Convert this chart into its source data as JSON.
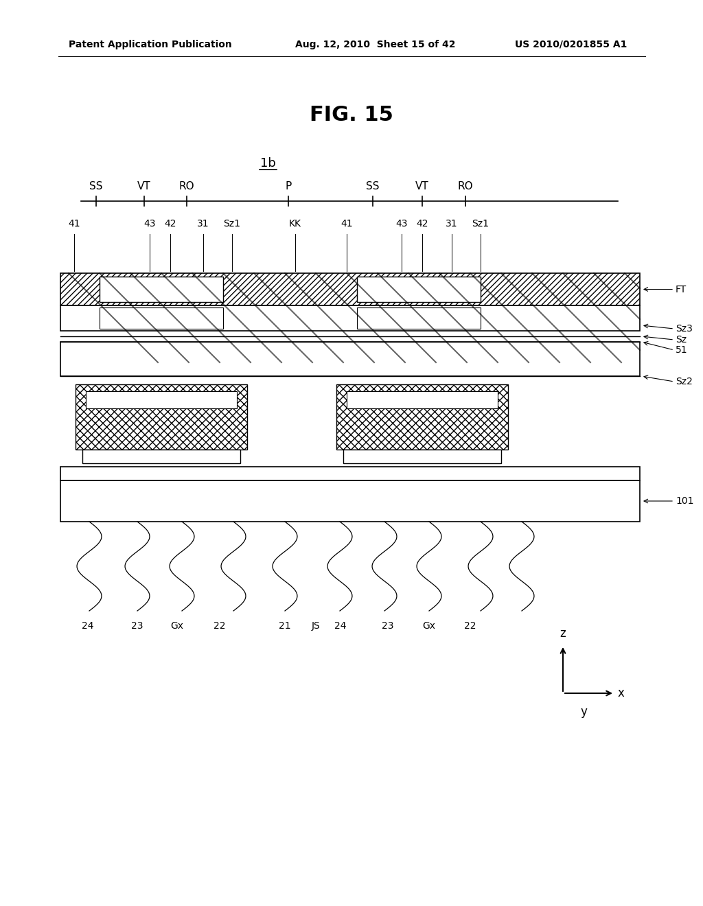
{
  "title": "FIG. 15",
  "header_left": "Patent Application Publication",
  "header_mid": "Aug. 12, 2010  Sheet 15 of 42",
  "header_right": "US 2010/0201855 A1",
  "label_1b": "1b",
  "timeline_labels": [
    "SS",
    "VT",
    "RO",
    "P",
    "SS",
    "VT",
    "RO"
  ],
  "bg_color": "#ffffff",
  "line_color": "#000000",
  "hatch_color": "#000000"
}
